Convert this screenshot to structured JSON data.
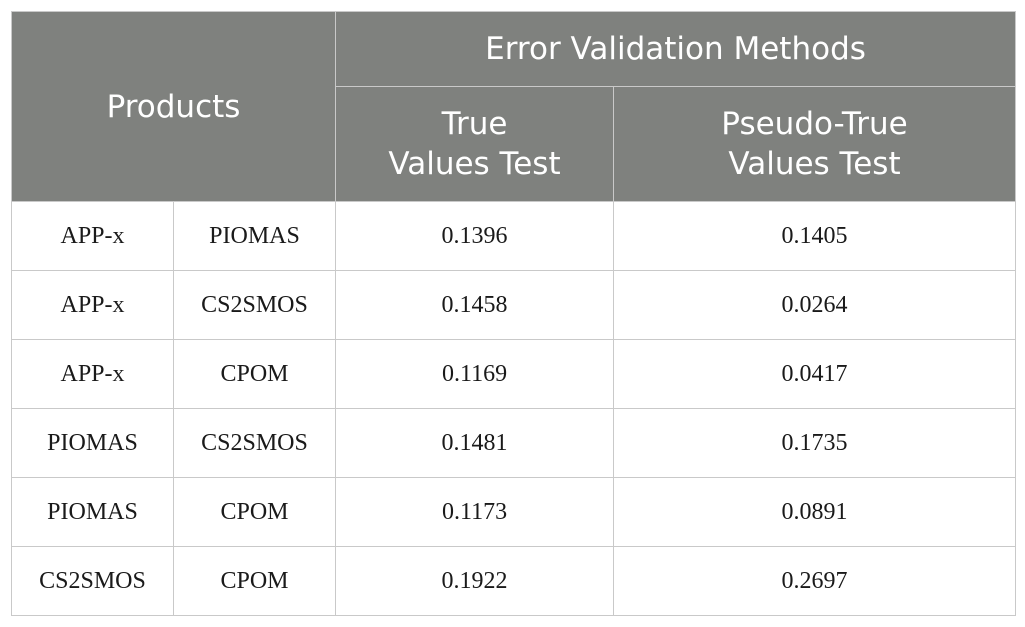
{
  "table": {
    "header": {
      "products": "Products",
      "group": "Error Validation Methods",
      "col_true": "True\nValues Test",
      "col_pseudo": "Pseudo-True\nValues Test"
    },
    "rows": [
      {
        "p1": "APP-x",
        "p2": "PIOMAS",
        "true_val": "0.1396",
        "pseudo_val": "0.1405"
      },
      {
        "p1": "APP-x",
        "p2": "CS2SMOS",
        "true_val": "0.1458",
        "pseudo_val": "0.0264"
      },
      {
        "p1": "APP-x",
        "p2": "CPOM",
        "true_val": "0.1169",
        "pseudo_val": "0.0417"
      },
      {
        "p1": "PIOMAS",
        "p2": "CS2SMOS",
        "true_val": "0.1481",
        "pseudo_val": "0.1735"
      },
      {
        "p1": "PIOMAS",
        "p2": "CPOM",
        "true_val": "0.1173",
        "pseudo_val": "0.0891"
      },
      {
        "p1": "CS2SMOS",
        "p2": "CPOM",
        "true_val": "0.1922",
        "pseudo_val": "0.2697"
      }
    ]
  },
  "colors": {
    "header_bg": "#7f817e",
    "header_text": "#ffffff",
    "grid": "#c9c9c9"
  }
}
